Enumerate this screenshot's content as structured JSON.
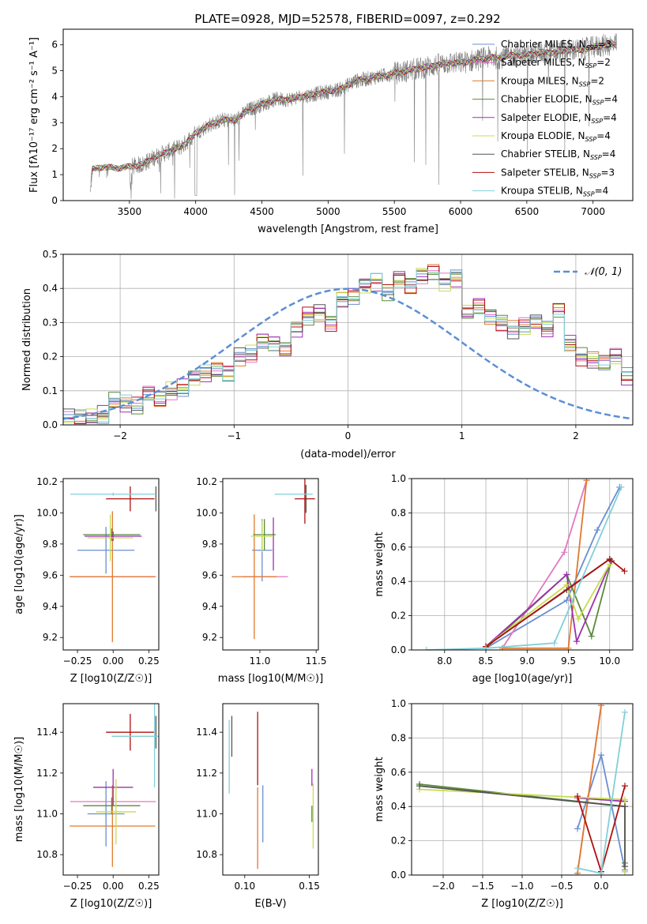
{
  "figure_title": "PLATE=0928, MJD=52578, FIBERID=0097, z=0.292",
  "chart_data": [
    {
      "type": "line",
      "panel": "spectrum",
      "xlabel": "wavelength [Angstrom, rest frame]",
      "ylabel": "Flux [fλ10⁻¹⁷ erg cm⁻² s⁻¹ A⁻¹]",
      "xlim": [
        3000,
        7300
      ],
      "ylim": [
        0,
        6.6
      ],
      "xticks": [
        3500,
        4000,
        4500,
        5000,
        5500,
        6000,
        6500,
        7000
      ],
      "yticks": [
        0,
        1,
        2,
        3,
        4,
        5,
        6
      ],
      "legend_position": "top-right",
      "data_color": "#808080",
      "continuum_x": [
        3200,
        3220,
        3300,
        3400,
        3500,
        3600,
        3700,
        3800,
        3900,
        4000,
        4100,
        4200,
        4300,
        4400,
        4500,
        4600,
        4700,
        4800,
        4900,
        5000,
        5100,
        5200,
        5300,
        5400,
        5500,
        5600,
        5700,
        5800,
        5900,
        6000,
        6100,
        6200,
        6300,
        6400,
        6500,
        6600,
        6700,
        6800,
        6900,
        7000,
        7100
      ],
      "continuum_y": [
        0.0,
        1.2,
        1.3,
        1.25,
        1.3,
        1.4,
        1.7,
        1.9,
        2.1,
        2.6,
        2.9,
        3.1,
        3.1,
        3.5,
        3.7,
        3.9,
        3.9,
        4.0,
        4.1,
        4.2,
        4.3,
        4.6,
        4.7,
        4.8,
        4.9,
        5.0,
        5.1,
        5.2,
        5.3,
        5.3,
        5.4,
        5.5,
        5.5,
        5.6,
        5.6,
        5.7,
        5.7,
        5.8,
        5.8,
        5.9,
        6.0
      ],
      "series": [
        {
          "name": "Chabrier MILES, N_SSP=3",
          "label_main": "Chabrier MILES, N",
          "label_sub": "SSP",
          "label_end": "=3",
          "color": "#6a8fd0"
        },
        {
          "name": "Salpeter MILES, N_SSP=2",
          "label_main": "Salpeter MILES, N",
          "label_sub": "SSP",
          "label_end": "=2",
          "color": "#e377c2"
        },
        {
          "name": "Kroupa MILES, N_SSP=2",
          "label_main": "Kroupa MILES, N",
          "label_sub": "SSP",
          "label_end": "=2",
          "color": "#e0792c"
        },
        {
          "name": "Chabrier ELODIE, N_SSP=4",
          "label_main": "Chabrier ELODIE, N",
          "label_sub": "SSP",
          "label_end": "=4",
          "color": "#5a8a3a"
        },
        {
          "name": "Salpeter ELODIE, N_SSP=4",
          "label_main": "Salpeter ELODIE, N",
          "label_sub": "SSP",
          "label_end": "=4",
          "color": "#9b30b0"
        },
        {
          "name": "Kroupa ELODIE, N_SSP=4",
          "label_main": "Kroupa ELODIE, N",
          "label_sub": "SSP",
          "label_end": "=4",
          "color": "#c8dc50"
        },
        {
          "name": "Chabrier STELIB, N_SSP=4",
          "label_main": "Chabrier STELIB, N",
          "label_sub": "SSP",
          "label_end": "=4",
          "color": "#555555"
        },
        {
          "name": "Salpeter STELIB, N_SSP=3",
          "label_main": "Salpeter STELIB, N",
          "label_sub": "SSP",
          "label_end": "=3",
          "color": "#b01010"
        },
        {
          "name": "Kroupa STELIB, N_SSP=4",
          "label_main": "Kroupa STELIB, N",
          "label_sub": "SSP",
          "label_end": "=4",
          "color": "#80d0d8"
        }
      ]
    },
    {
      "type": "histogram",
      "panel": "residuals",
      "xlabel": "(data-model)/error",
      "ylabel": "Normed distribution",
      "xlim": [
        -2.5,
        2.5
      ],
      "ylim": [
        0,
        0.5
      ],
      "xticks": [
        -2,
        -1,
        0,
        1,
        2
      ],
      "xtick_labels": [
        "−2",
        "−1",
        "0",
        "1",
        "2"
      ],
      "yticks": [
        0.0,
        0.1,
        0.2,
        0.3,
        0.4,
        0.5
      ],
      "ytick_labels": [
        "0.0",
        "0.1",
        "0.2",
        "0.3",
        "0.4",
        "0.5"
      ],
      "grid": true,
      "legend_position": "top-right",
      "gaussian_label": "𝒩(0, 1)",
      "gaussian_color": "#5b8fd6",
      "bin_edges_start": -2.5,
      "bin_width": 0.1,
      "bin_heights": [
        0.02,
        0.02,
        0.025,
        0.03,
        0.07,
        0.06,
        0.055,
        0.09,
        0.075,
        0.1,
        0.11,
        0.14,
        0.15,
        0.16,
        0.15,
        0.2,
        0.21,
        0.25,
        0.24,
        0.22,
        0.28,
        0.32,
        0.33,
        0.3,
        0.37,
        0.38,
        0.41,
        0.42,
        0.39,
        0.43,
        0.41,
        0.44,
        0.45,
        0.42,
        0.43,
        0.33,
        0.35,
        0.32,
        0.3,
        0.28,
        0.29,
        0.3,
        0.28,
        0.34,
        0.24,
        0.2,
        0.19,
        0.18,
        0.2,
        0.14,
        0.13,
        0.12,
        0.1,
        0.09,
        0.07,
        0.06,
        0.08,
        0.05,
        0.04,
        0.03,
        0.04,
        0.04,
        0.03,
        0.03,
        0.02,
        0.02,
        0.015,
        0.01,
        0.01,
        0.005
      ]
    },
    {
      "type": "scatter",
      "panel": "age-vs-Z",
      "xlabel": "Z [log10(Z/Z☉)]",
      "ylabel": "age [log10(age/yr)]",
      "xlim": [
        -0.35,
        0.32
      ],
      "ylim": [
        9.12,
        10.22
      ],
      "xticks": [
        -0.25,
        0.0,
        0.25
      ],
      "xtick_labels": [
        "−0.25",
        "0.00",
        "0.25"
      ],
      "yticks": [
        9.2,
        9.4,
        9.6,
        9.8,
        10.0,
        10.2
      ],
      "ytick_labels": [
        "9.2",
        "9.4",
        "9.6",
        "9.8",
        "10.0",
        "10.2"
      ],
      "points": [
        {
          "series": 0,
          "x": -0.05,
          "y": 9.76,
          "xerr": 0.2,
          "yerr": 0.15
        },
        {
          "series": 1,
          "x": 0.0,
          "y": 9.59,
          "xerr": 0.3,
          "yerr": 0.0
        },
        {
          "series": 2,
          "x": -0.005,
          "y": 9.59,
          "xerr": 0.3,
          "yerr": 0.42
        },
        {
          "series": 3,
          "x": -0.01,
          "y": 9.86,
          "xerr": 0.2,
          "yerr": 0.04
        },
        {
          "series": 4,
          "x": 0.0,
          "y": 9.85,
          "xerr": 0.2,
          "yerr": 0.03
        },
        {
          "series": 5,
          "x": -0.02,
          "y": 9.84,
          "xerr": 0.16,
          "yerr": 0.15
        },
        {
          "series": 6,
          "x": 0.3,
          "y": 10.09,
          "xerr": 0.0,
          "yerr": 0.08
        },
        {
          "series": 7,
          "x": 0.12,
          "y": 10.09,
          "xerr": 0.17,
          "yerr": 0.08
        },
        {
          "series": 8,
          "x": 0.0,
          "y": 10.12,
          "xerr": 0.3,
          "yerr": 0.01
        }
      ]
    },
    {
      "type": "scatter",
      "panel": "age-vs-mass",
      "xlabel": "mass [log10(M/M☉)]",
      "ylabel": "",
      "xlim": [
        10.67,
        11.52
      ],
      "ylim": [
        9.12,
        10.22
      ],
      "xticks": [
        11.0,
        11.5
      ],
      "xtick_labels": [
        "11.0",
        "11.5"
      ],
      "yticks": [
        9.2,
        9.4,
        9.6,
        9.8,
        10.0,
        10.2
      ],
      "ytick_labels": [
        "9.2",
        "9.4",
        "9.6",
        "9.8",
        "10.0",
        "10.2"
      ],
      "points": [
        {
          "series": 0,
          "x": 11.02,
          "y": 9.76,
          "xerr": 0.09,
          "yerr": 0.2
        },
        {
          "series": 1,
          "x": 11.05,
          "y": 9.59,
          "xerr": 0.2,
          "yerr": 0.0
        },
        {
          "series": 2,
          "x": 10.95,
          "y": 9.59,
          "xerr": 0.2,
          "yerr": 0.4
        },
        {
          "series": 3,
          "x": 11.04,
          "y": 9.86,
          "xerr": 0.1,
          "yerr": 0.1
        },
        {
          "series": 4,
          "x": 11.12,
          "y": 9.8,
          "xerr": 0.0,
          "yerr": 0.17
        },
        {
          "series": 5,
          "x": 11.02,
          "y": 9.85,
          "xerr": 0.1,
          "yerr": 0.1
        },
        {
          "series": 6,
          "x": 11.41,
          "y": 10.09,
          "xerr": 0.0,
          "yerr": 0.09
        },
        {
          "series": 7,
          "x": 11.4,
          "y": 10.09,
          "xerr": 0.09,
          "yerr": 0.16
        },
        {
          "series": 8,
          "x": 11.3,
          "y": 10.12,
          "xerr": 0.17,
          "yerr": 0.0
        }
      ]
    },
    {
      "type": "line",
      "panel": "mass-weight-vs-age",
      "xlabel": "age [log10(age/yr)]",
      "ylabel": "mass weight",
      "xlim": [
        7.6,
        10.28
      ],
      "ylim": [
        0,
        1
      ],
      "xticks": [
        8.0,
        8.5,
        9.0,
        9.5,
        10.0
      ],
      "xtick_labels": [
        "8.0",
        "8.5",
        "9.0",
        "9.5",
        "10.0"
      ],
      "yticks": [
        0.0,
        0.2,
        0.4,
        0.6,
        0.8,
        1.0
      ],
      "ytick_labels": [
        "0.0",
        "0.2",
        "0.4",
        "0.6",
        "0.8",
        "1.0"
      ],
      "grid": true,
      "lines": [
        {
          "series": 0,
          "x": [
            8.5,
            9.48,
            9.85,
            10.12
          ],
          "y": [
            0.01,
            0.29,
            0.7,
            0.95
          ]
        },
        {
          "series": 1,
          "x": [
            8.7,
            9.45,
            9.72
          ],
          "y": [
            0.01,
            0.57,
            0.99
          ]
        },
        {
          "series": 2,
          "x": [
            8.7,
            9.5,
            9.72
          ],
          "y": [
            0.01,
            0.01,
            0.99
          ]
        },
        {
          "series": 3,
          "x": [
            8.5,
            9.48,
            9.78,
            10.02
          ],
          "y": [
            0.01,
            0.44,
            0.08,
            0.52
          ]
        },
        {
          "series": 4,
          "x": [
            8.5,
            9.48,
            9.6,
            10.02
          ],
          "y": [
            0.02,
            0.44,
            0.05,
            0.52
          ]
        },
        {
          "series": 5,
          "x": [
            8.5,
            9.48,
            9.62,
            10.0
          ],
          "y": [
            0.02,
            0.38,
            0.18,
            0.5
          ]
        },
        {
          "series": 6,
          "x": [
            8.5,
            9.48,
            10.0,
            10.02
          ],
          "y": [
            0.02,
            0.35,
            0.53,
            0.52
          ]
        },
        {
          "series": 7,
          "x": [
            8.5,
            10.0,
            10.18
          ],
          "y": [
            0.02,
            0.53,
            0.46
          ]
        },
        {
          "series": 8,
          "x": [
            7.78,
            8.5,
            9.33,
            10.14
          ],
          "y": [
            0.0,
            0.01,
            0.04,
            0.95
          ]
        }
      ]
    },
    {
      "type": "scatter",
      "panel": "mass-vs-Z",
      "xlabel": "Z [log10(Z/Z☉)]",
      "ylabel": "mass [log10(M/M☉)]",
      "xlim": [
        -0.35,
        0.32
      ],
      "ylim": [
        10.7,
        11.54
      ],
      "xticks": [
        -0.25,
        0.0,
        0.25
      ],
      "xtick_labels": [
        "−0.25",
        "0.00",
        "0.25"
      ],
      "yticks": [
        10.8,
        11.0,
        11.2,
        11.4
      ],
      "ytick_labels": [
        "10.8",
        "11.0",
        "11.2",
        "11.4"
      ],
      "points": [
        {
          "series": 0,
          "x": -0.05,
          "y": 11.0,
          "xerr": 0.13,
          "yerr": 0.16
        },
        {
          "series": 1,
          "x": 0.0,
          "y": 11.06,
          "xerr": 0.3,
          "yerr": 0.0
        },
        {
          "series": 2,
          "x": -0.005,
          "y": 10.94,
          "xerr": 0.3,
          "yerr": 0.2
        },
        {
          "series": 3,
          "x": -0.01,
          "y": 11.04,
          "xerr": 0.2,
          "yerr": 0.04
        },
        {
          "series": 4,
          "x": 0.0,
          "y": 11.13,
          "xerr": 0.14,
          "yerr": 0.09
        },
        {
          "series": 5,
          "x": 0.02,
          "y": 11.01,
          "xerr": 0.14,
          "yerr": 0.16
        },
        {
          "series": 6,
          "x": 0.3,
          "y": 11.4,
          "xerr": 0.0,
          "yerr": 0.08
        },
        {
          "series": 7,
          "x": 0.12,
          "y": 11.4,
          "xerr": 0.17,
          "yerr": 0.09
        },
        {
          "series": 8,
          "x": 0.29,
          "y": 11.38,
          "xerr": 0.3,
          "yerr": 0.25
        }
      ]
    },
    {
      "type": "scatter",
      "panel": "mass-vs-EBV",
      "xlabel": "E(B-V)",
      "ylabel": "",
      "xlim": [
        0.083,
        0.157
      ],
      "ylim": [
        10.7,
        11.54
      ],
      "xticks": [
        0.1,
        0.15
      ],
      "xtick_labels": [
        "0.10",
        "0.15"
      ],
      "yticks": [
        10.8,
        11.0,
        11.2,
        11.4
      ],
      "ytick_labels": [
        "10.8",
        "11.0",
        "11.2",
        "11.4"
      ],
      "points": [
        {
          "series": 0,
          "x": 0.114,
          "y": 11.0,
          "xerr": 0,
          "yerr": 0.14
        },
        {
          "series": 1,
          "x": 0.152,
          "y": 11.14,
          "xerr": 0,
          "yerr": 0.0
        },
        {
          "series": 2,
          "x": 0.11,
          "y": 10.93,
          "xerr": 0,
          "yerr": 0.2
        },
        {
          "series": 3,
          "x": 0.152,
          "y": 11.0,
          "xerr": 0,
          "yerr": 0.04
        },
        {
          "series": 4,
          "x": 0.152,
          "y": 11.18,
          "xerr": 0,
          "yerr": 0.04
        },
        {
          "series": 5,
          "x": 0.153,
          "y": 10.99,
          "xerr": 0,
          "yerr": 0.16
        },
        {
          "series": 6,
          "x": 0.09,
          "y": 11.38,
          "xerr": 0,
          "yerr": 0.1
        },
        {
          "series": 7,
          "x": 0.11,
          "y": 11.32,
          "xerr": 0,
          "yerr": 0.18
        },
        {
          "series": 8,
          "x": 0.088,
          "y": 11.28,
          "xerr": 0,
          "yerr": 0.18
        }
      ]
    },
    {
      "type": "line",
      "panel": "mass-weight-vs-Z",
      "xlabel": "Z [log10(Z/Z☉)]",
      "ylabel": "mass weight",
      "xlim": [
        -2.4,
        0.4
      ],
      "ylim": [
        0,
        1
      ],
      "xticks": [
        -2.0,
        -1.5,
        -1.0,
        -0.5,
        0.0
      ],
      "xtick_labels": [
        "−2.0",
        "−1.5",
        "−1.0",
        "−0.5",
        "0.0"
      ],
      "yticks": [
        0.0,
        0.2,
        0.4,
        0.6,
        0.8,
        1.0
      ],
      "ytick_labels": [
        "0.0",
        "0.2",
        "0.4",
        "0.6",
        "0.8",
        "1.0"
      ],
      "grid": true,
      "lines": [
        {
          "series": 0,
          "x": [
            -0.3,
            0.0,
            0.3
          ],
          "y": [
            0.27,
            0.7,
            0.03
          ]
        },
        {
          "series": 1,
          "x": [
            -0.3,
            0.0
          ],
          "y": [
            0.01,
            0.99
          ]
        },
        {
          "series": 2,
          "x": [
            -0.3,
            0.0
          ],
          "y": [
            0.01,
            0.99
          ]
        },
        {
          "series": 3,
          "x": [
            -2.3,
            0.3,
            0.3
          ],
          "y": [
            0.53,
            0.4,
            0.07
          ]
        },
        {
          "series": 4,
          "x": [
            -0.3,
            0.3,
            0.3
          ],
          "y": [
            0.45,
            0.43,
            0.02
          ]
        },
        {
          "series": 5,
          "x": [
            -2.3,
            0.3,
            0.3
          ],
          "y": [
            0.5,
            0.44,
            0.02
          ]
        },
        {
          "series": 6,
          "x": [
            -2.3,
            0.3,
            0.3
          ],
          "y": [
            0.52,
            0.4,
            0.05
          ]
        },
        {
          "series": 7,
          "x": [
            -0.3,
            0.0,
            0.3
          ],
          "y": [
            0.46,
            0.02,
            0.52
          ]
        },
        {
          "series": 8,
          "x": [
            -0.3,
            0.0,
            0.3
          ],
          "y": [
            0.04,
            0.01,
            0.95
          ]
        }
      ]
    }
  ]
}
